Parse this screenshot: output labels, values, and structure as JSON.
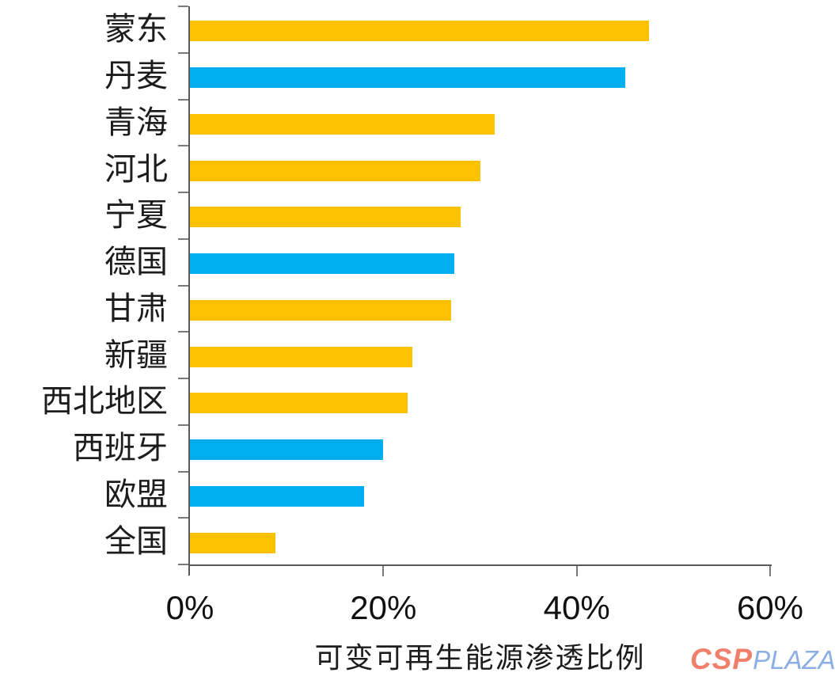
{
  "chart_data": {
    "type": "bar",
    "orientation": "horizontal",
    "title": "",
    "xlabel": "可变可再生能源渗透比例",
    "ylabel": "",
    "xlim": [
      0,
      60
    ],
    "grid": false,
    "legend": "none",
    "categories": [
      "蒙东",
      "丹麦",
      "青海",
      "河北",
      "宁夏",
      "德国",
      "甘肃",
      "新疆",
      "西北地区",
      "西班牙",
      "欧盟",
      "全国"
    ],
    "values": [
      47.5,
      45,
      31.5,
      30,
      28,
      27.3,
      27,
      23,
      22.5,
      20,
      18,
      8.8
    ],
    "bar_colors": [
      "yellow",
      "blue",
      "yellow",
      "yellow",
      "yellow",
      "blue",
      "yellow",
      "yellow",
      "yellow",
      "blue",
      "blue",
      "yellow"
    ],
    "colors": {
      "yellow": "#FCC101",
      "blue": "#00ADEE",
      "axis": "#595959",
      "tick": "#7a7a7a",
      "text": "#1c1c1c"
    },
    "x_ticks": [
      "0%",
      "20%",
      "40%",
      "60%"
    ],
    "x_tick_values": [
      0,
      20,
      40,
      60
    ]
  },
  "watermark": {
    "csp": "CSP",
    "plaza": "PLAZA",
    "csp_color": "#F0806C",
    "plaza_color": "#8BAEE4"
  }
}
